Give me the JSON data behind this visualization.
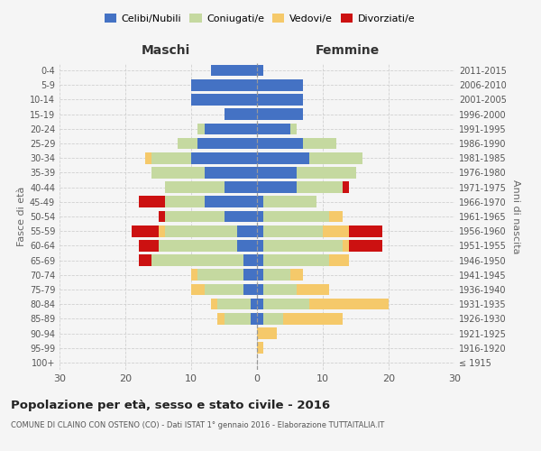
{
  "age_groups": [
    "100+",
    "95-99",
    "90-94",
    "85-89",
    "80-84",
    "75-79",
    "70-74",
    "65-69",
    "60-64",
    "55-59",
    "50-54",
    "45-49",
    "40-44",
    "35-39",
    "30-34",
    "25-29",
    "20-24",
    "15-19",
    "10-14",
    "5-9",
    "0-4"
  ],
  "birth_years": [
    "≤ 1915",
    "1916-1920",
    "1921-1925",
    "1926-1930",
    "1931-1935",
    "1936-1940",
    "1941-1945",
    "1946-1950",
    "1951-1955",
    "1956-1960",
    "1961-1965",
    "1966-1970",
    "1971-1975",
    "1976-1980",
    "1981-1985",
    "1986-1990",
    "1991-1995",
    "1996-2000",
    "2001-2005",
    "2006-2010",
    "2011-2015"
  ],
  "maschi": {
    "celibi": [
      0,
      0,
      0,
      1,
      1,
      2,
      2,
      2,
      3,
      3,
      5,
      8,
      5,
      8,
      10,
      9,
      8,
      5,
      10,
      10,
      7
    ],
    "coniugati": [
      0,
      0,
      0,
      4,
      5,
      6,
      7,
      14,
      12,
      11,
      9,
      6,
      9,
      8,
      6,
      3,
      1,
      0,
      0,
      0,
      0
    ],
    "vedovi": [
      0,
      0,
      0,
      1,
      1,
      2,
      1,
      0,
      0,
      1,
      0,
      0,
      0,
      0,
      1,
      0,
      0,
      0,
      0,
      0,
      0
    ],
    "divorziati": [
      0,
      0,
      0,
      0,
      0,
      0,
      0,
      2,
      3,
      4,
      1,
      4,
      0,
      0,
      0,
      0,
      0,
      0,
      0,
      0,
      0
    ]
  },
  "femmine": {
    "nubili": [
      0,
      0,
      0,
      1,
      1,
      1,
      1,
      1,
      1,
      1,
      1,
      1,
      6,
      6,
      8,
      7,
      5,
      7,
      7,
      7,
      1
    ],
    "coniugate": [
      0,
      0,
      0,
      3,
      7,
      5,
      4,
      10,
      12,
      9,
      10,
      8,
      7,
      9,
      8,
      5,
      1,
      0,
      0,
      0,
      0
    ],
    "vedove": [
      0,
      1,
      3,
      9,
      12,
      5,
      2,
      3,
      1,
      4,
      2,
      0,
      0,
      0,
      0,
      0,
      0,
      0,
      0,
      0,
      0
    ],
    "divorziate": [
      0,
      0,
      0,
      0,
      0,
      0,
      0,
      0,
      5,
      5,
      0,
      0,
      1,
      0,
      0,
      0,
      0,
      0,
      0,
      0,
      0
    ]
  },
  "color_celibi": "#4472c4",
  "color_coniugati": "#c5d9a0",
  "color_vedovi": "#f5c96a",
  "color_divorziati": "#cc1111",
  "xlim": 30,
  "title_main": "Popolazione per età, sesso e stato civile - 2016",
  "title_sub": "COMUNE DI CLAINO CON OSTENO (CO) - Dati ISTAT 1° gennaio 2016 - Elaborazione TUTTAITALIA.IT",
  "ylabel_left": "Fasce di età",
  "ylabel_right": "Anni di nascita",
  "xlabel_left": "Maschi",
  "xlabel_right": "Femmine",
  "bg_color": "#f5f5f5",
  "grid_color": "#cccccc"
}
